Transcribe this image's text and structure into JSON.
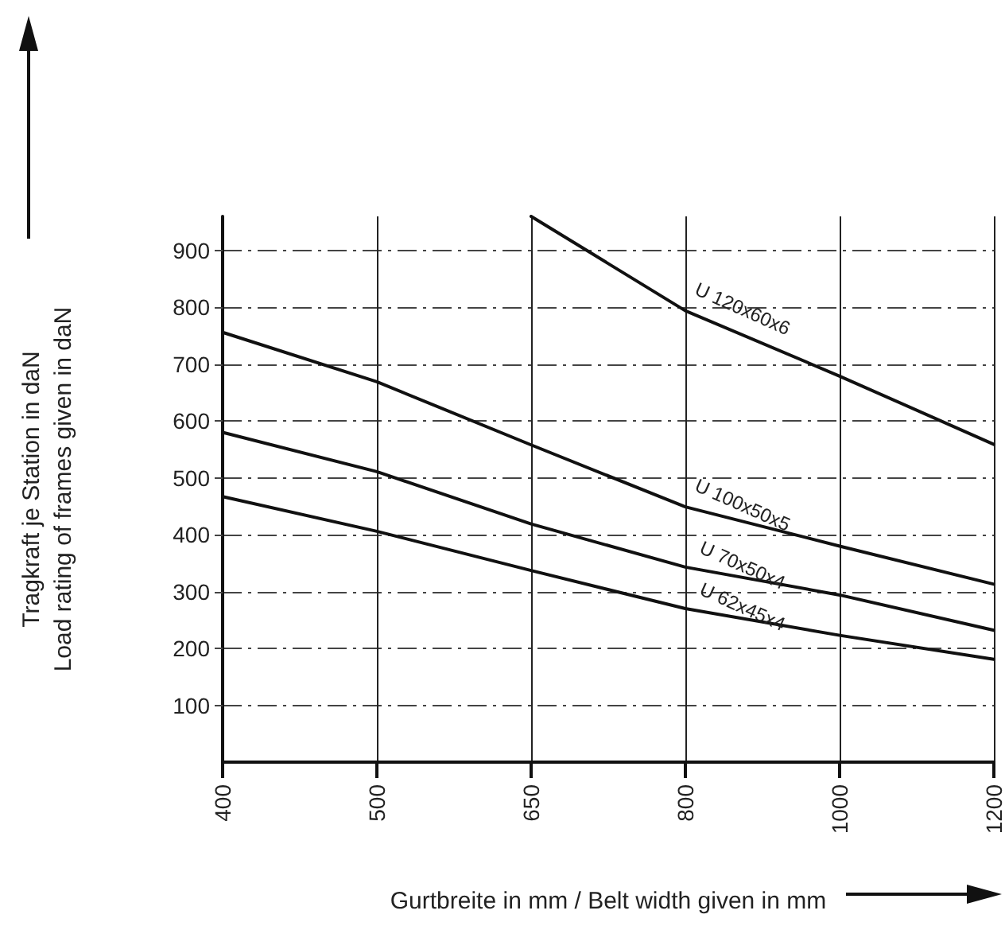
{
  "chart_data": {
    "type": "line",
    "xlabel": "Gurtbreite in mm / Belt width given in mm",
    "ylabel": "Tragkraft je Station in daN\nLoad rating of frames given in daN",
    "categories": [
      "400",
      "500",
      "650",
      "800",
      "1000",
      "1200"
    ],
    "series": [
      {
        "name": "U 120x60x6",
        "color": "#111111",
        "values": [
          null,
          null,
          960,
          794,
          679,
          559
        ]
      },
      {
        "name": "U 100x50x5",
        "color": "#111111",
        "values": [
          756,
          669,
          558,
          449,
          380,
          313
        ]
      },
      {
        "name": "U 70x50x4",
        "color": "#111111",
        "values": [
          580,
          511,
          419,
          343,
          294,
          232
        ]
      },
      {
        "name": "U 62x45x4",
        "color": "#111111",
        "values": [
          467,
          406,
          337,
          270,
          223,
          181
        ]
      }
    ],
    "ylim": [
      0,
      960
    ],
    "yticks": [
      100,
      200,
      300,
      400,
      500,
      600,
      700,
      800,
      900
    ],
    "grid": true,
    "legend": false,
    "marker": "none",
    "line_style": "solid"
  }
}
